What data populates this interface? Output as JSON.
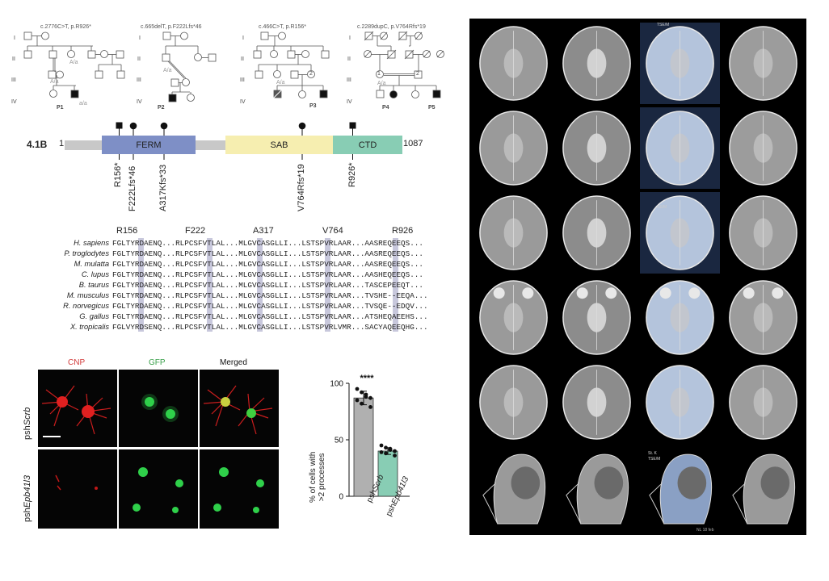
{
  "pedigrees": {
    "generation_labels": [
      "I",
      "II",
      "III",
      "IV"
    ],
    "families": [
      {
        "variant": "c.2776C>T, p.R926*",
        "proband": "P1",
        "genotype": "A/a",
        "genotype_hom": "a/a"
      },
      {
        "variant": "c.665delT, p.F222Lfs*46",
        "proband": "P2",
        "genotype": "A/a",
        "genotype_hom": "a/a"
      },
      {
        "variant": "c.466C>T, p.R156*",
        "proband": "P3",
        "genotype": "A/a",
        "genotype_hom": "a/a"
      },
      {
        "variant": "c.2289dupC, p.V764Rfs*19",
        "probands": [
          "P4",
          "P5"
        ],
        "genotype": "A/a",
        "genotype_hom": "a/a"
      }
    ],
    "counts": {
      "sibs2": "2",
      "sibs3": "3",
      "two": "2",
      "one": "1"
    }
  },
  "protein": {
    "name": "4.1B",
    "start": "1",
    "end": "1087",
    "domains": [
      {
        "label": "FERM",
        "color": "#7e8fc6"
      },
      {
        "label": "SAB",
        "color": "#f6eeb0"
      },
      {
        "label": "CTD",
        "color": "#88cdb4"
      }
    ],
    "mutations": [
      "R156*",
      "F222Lfs*46",
      "A317Kfs*33",
      "V764Rfs*19",
      "R926*"
    ]
  },
  "alignment": {
    "positions": [
      "R156",
      "F222",
      "A317",
      "V764",
      "R926"
    ],
    "rows": [
      {
        "species": "H. sapiens",
        "seq": "FGLTYRDAENQ...RLPCSFVTLAL...MLGVCASGLLI...LSTSPVRLAAR...AASREQEEQS..."
      },
      {
        "species": "P. troglodytes",
        "seq": "FGLTYRDAENQ...RLPCSFVTLAL...MLGVCASGLLI...LSTSPVRLAAR...AASREQEEQS..."
      },
      {
        "species": "M. mulatta",
        "seq": "FGLTYRDAENQ...RLPCSFVTLAL...MLGVCASGLLI...LSTSPVRLAAR...AASREQEEQS..."
      },
      {
        "species": "C. lupus",
        "seq": "FGLTYRDAENQ...RLPCSFVTLAL...MLGVCASGLLI...LSTSPVRLAAR...AASHEQEEQS..."
      },
      {
        "species": "B. taurus",
        "seq": "FGLTYRDAENQ...RLPCSFVTLAL...MLGVCASGLLI...LSTSPVRLAAR...TASCEPEEQT..."
      },
      {
        "species": "M. musculus",
        "seq": "FGLTYRDAENQ...RLPCSFVTLAL...MLGVCASGLLI...LSTSPVRLAAR...TVSHE--EEQA..."
      },
      {
        "species": "R. norvegicus",
        "seq": "FGLTYRDAENQ...RLPCSFVTLAL...MLGVCASGLLI...LSTSPVRLAAR...TVSQE--EDQV..."
      },
      {
        "species": "G. gallus",
        "seq": "FGLTYRDAENQ...RLPCSFVTLAL...MLGVCASGLLI...LSTSPVRLAAR...ATSHEQAEEHS..."
      },
      {
        "species": "X. tropicalis",
        "seq": "FGLVYRDSENQ...RLPCSFVTLAL...MLGVCASGLLI...LSTSPVRLVMR...SACYAQEEQHG..."
      }
    ],
    "highlight_color": "#c8c8dc"
  },
  "microscopy": {
    "columns": [
      "CNP",
      "GFP",
      "Merged"
    ],
    "column_colors": [
      "#d23c3c",
      "#3aa04a",
      "#111111"
    ],
    "rows": [
      {
        "prefix": "psh",
        "gene": "Scrb"
      },
      {
        "prefix": "psh",
        "gene": "Epb41l3"
      }
    ]
  },
  "chart_data": {
    "type": "bar",
    "categories": [
      "pshScrb",
      "pshEpb41l3"
    ],
    "category_prefix": [
      "psh",
      "psh"
    ],
    "category_gene": [
      "Scrb",
      "Epb41l3"
    ],
    "values": [
      87,
      40
    ],
    "errors": [
      6,
      3
    ],
    "points": [
      [
        95,
        92,
        88,
        87,
        85,
        82,
        90,
        79
      ],
      [
        45,
        43,
        42,
        40,
        39,
        38,
        41,
        36
      ]
    ],
    "bar_colors": [
      "#b0b0b0",
      "#88cdb4"
    ],
    "ylim": [
      0,
      100
    ],
    "yticks": [
      0,
      50,
      100
    ],
    "ylabel_line1": "% of cells with",
    "ylabel_line2": ">2 processes",
    "significance": "****"
  },
  "mri": {
    "rows": 6,
    "cols": 4,
    "overlay_texts": [
      "TSE/M",
      "SE/M",
      "St. K",
      "TSE/M",
      "NL 18 feb"
    ]
  }
}
